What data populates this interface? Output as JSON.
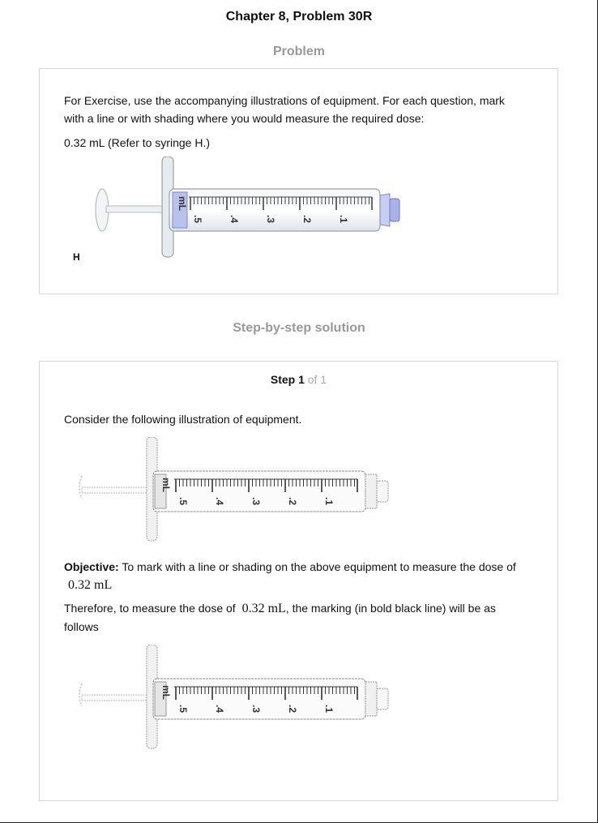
{
  "header": {
    "title": "Chapter 8, Problem 30R"
  },
  "problem": {
    "heading": "Problem",
    "text_line1": "For Exercise, use the accompanying illustrations of equipment. For each question, mark",
    "text_line2": "with a line or with shading where you would measure the required dose:",
    "dose_text": "0.32 mL (Refer to syringe H.)",
    "figure_label": "H",
    "syringe": {
      "unit": "mL",
      "scale_labels": [
        ".5",
        ".4",
        ".3",
        ".2",
        ".1"
      ]
    }
  },
  "solution": {
    "heading": "Step-by-step solution",
    "step_word": "Step 1",
    "step_of": "of 1",
    "intro": "Consider the following illustration of equipment.",
    "objective_label": "Objective:",
    "objective_text": "To mark with a line or shading on the above equipment to measure the dose of",
    "dose": "0.32 mL",
    "therefore_pre": "Therefore, to measure the dose of",
    "therefore_post": ", the marking (in bold black line) will be as",
    "therefore_end": "follows",
    "syringe": {
      "unit": "mL",
      "scale_labels": [
        ".5",
        ".4",
        ".3",
        ".2",
        ".1"
      ]
    }
  },
  "colors": {
    "heading_gray": "#999999",
    "card_border": "#d6d6d6",
    "hub_blue": "#8f97d8"
  }
}
